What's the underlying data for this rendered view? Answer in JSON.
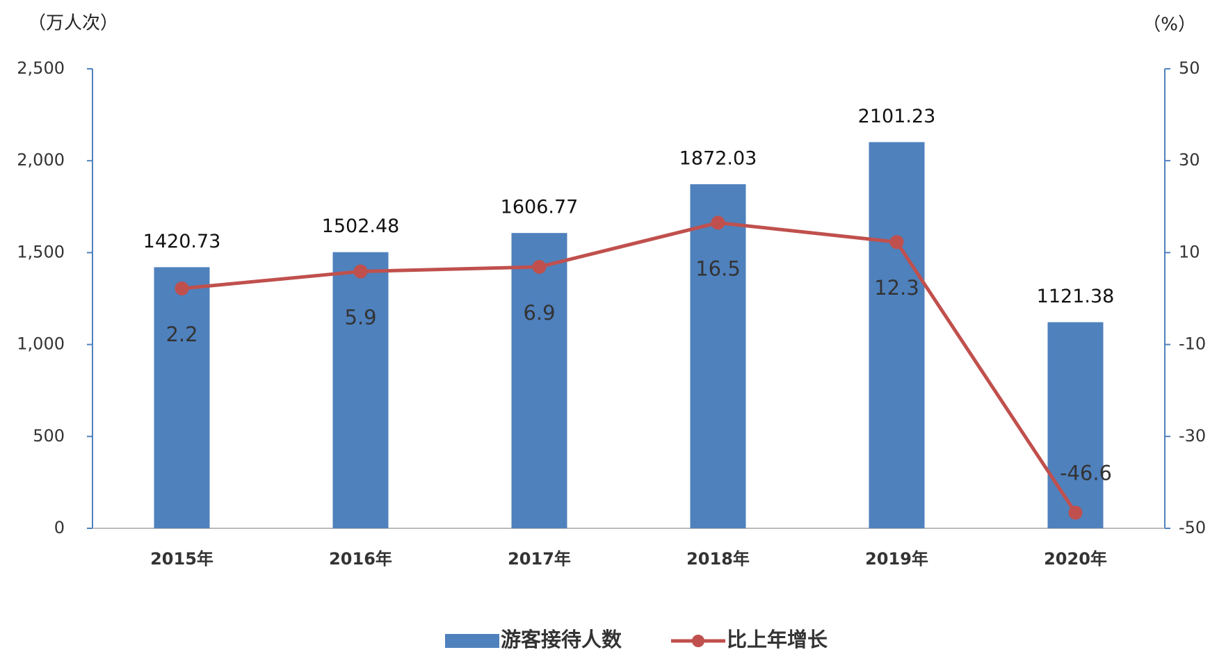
{
  "chart_data": {
    "type": "bar",
    "y_label": "（万人次）",
    "y2_label": "（%）",
    "categories": [
      "2015年",
      "2016年",
      "2017年",
      "2018年",
      "2019年",
      "2020年"
    ],
    "series": [
      {
        "name": "游客接待人数",
        "type": "bar",
        "color": "#4f81bd",
        "values": [
          1420.73,
          1502.48,
          1606.77,
          1872.03,
          2101.23,
          1121.38
        ]
      },
      {
        "name": "比上年增长",
        "type": "line",
        "axis": "y2",
        "color": "#c0504d",
        "values": [
          2.2,
          5.9,
          6.9,
          16.5,
          12.3,
          -46.6
        ]
      }
    ],
    "ylim": [
      0,
      2500
    ],
    "yticks": [
      0,
      500,
      {
        "value": 1000,
        "label": "1,000"
      },
      {
        "value": 1500,
        "label": "1,500"
      },
      {
        "value": 2000,
        "label": "2,000"
      },
      {
        "value": 2500,
        "label": "2,500"
      }
    ],
    "y2lim": [
      -50,
      50
    ],
    "y2ticks": [
      -50,
      -30,
      -10,
      10,
      30,
      50
    ],
    "grid": false,
    "legend": "bottom"
  }
}
